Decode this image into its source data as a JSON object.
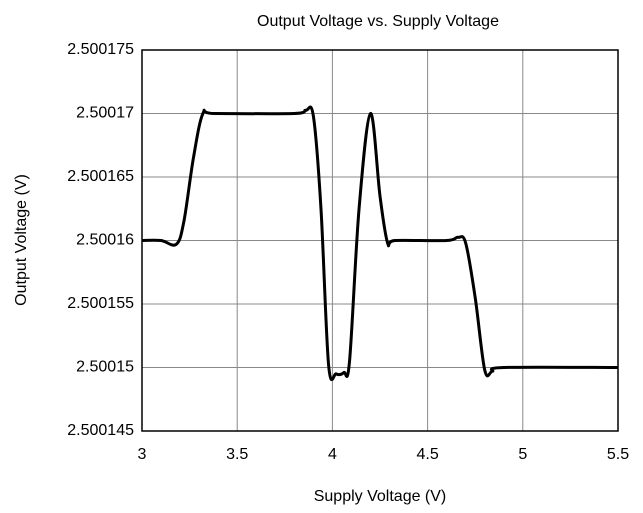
{
  "chart_data": {
    "type": "line",
    "title": "Output Voltage vs. Supply Voltage",
    "x_label": "Supply Voltage (V)",
    "y_label": "Output Voltage (V)",
    "x": [
      3,
      3.1,
      3.18,
      3.22,
      3.27,
      3.32,
      3.38,
      3.8,
      3.86,
      3.9,
      3.94,
      3.98,
      4.02,
      4.06,
      4.09,
      4.14,
      4.2,
      4.25,
      4.29,
      4.33,
      4.6,
      4.66,
      4.7,
      4.75,
      4.8,
      4.84,
      4.9,
      5.5
    ],
    "series": [
      {
        "name": "Output Voltage",
        "color": "#000000",
        "values": [
          2.50016,
          2.50016,
          2.5001597,
          2.5001615,
          2.5001665,
          2.50017,
          2.50017,
          2.50017,
          2.50017025,
          2.5001698,
          2.5001625,
          2.5001502,
          2.5001495,
          2.5001496,
          2.5001505,
          2.5001625,
          2.50017,
          2.5001635,
          2.5001598,
          2.50016,
          2.50016,
          2.50016025,
          2.5001598,
          2.5001555,
          2.5001498,
          2.5001497,
          2.50015,
          2.50015
        ]
      }
    ],
    "xlim": [
      3,
      5.5
    ],
    "xticks": [
      3,
      3.5,
      4,
      4.5,
      5,
      5.5
    ],
    "ylim": [
      2.500145,
      2.500175
    ],
    "yticks": [
      2.500145,
      2.50015,
      2.500155,
      2.50016,
      2.500165,
      2.50017,
      2.500175
    ],
    "grid": true
  }
}
